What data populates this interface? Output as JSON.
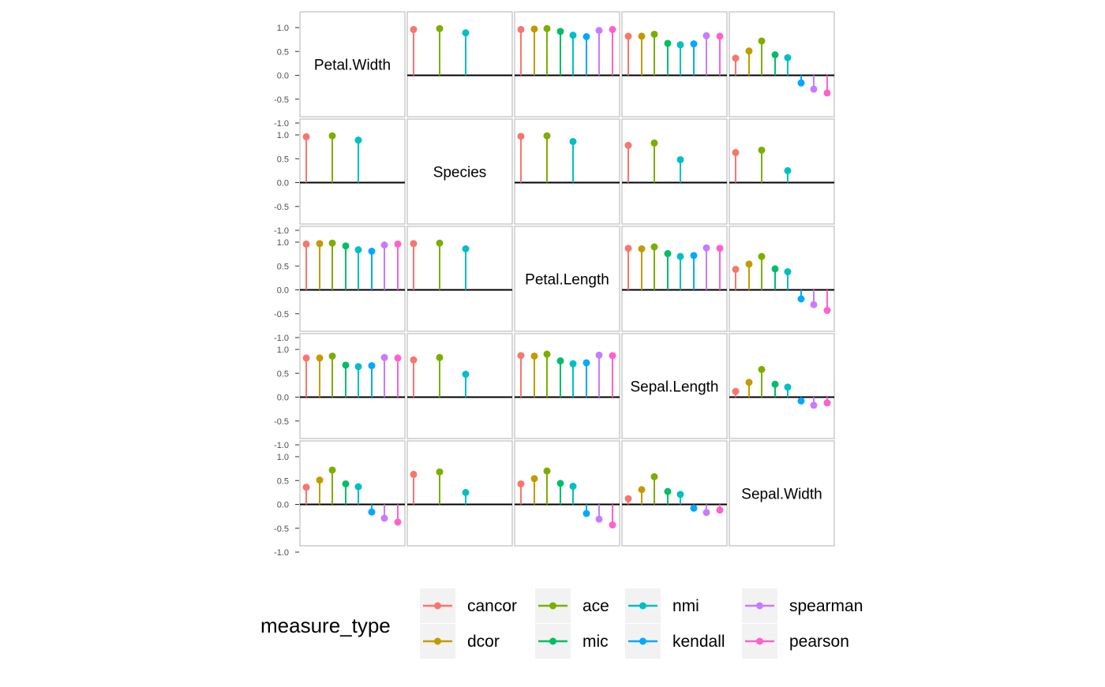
{
  "chart_data": {
    "type": "lollipop-matrix",
    "variables": [
      "Petal.Width",
      "Species",
      "Petal.Length",
      "Sepal.Length",
      "Sepal.Width"
    ],
    "ylim": [
      -1.0,
      1.0
    ],
    "yticks": [
      "1.0",
      "0.5",
      "0.0",
      "-0.5",
      "-1.0"
    ],
    "ytick_values": [
      1.0,
      0.5,
      0.0,
      -0.5,
      -1.0
    ],
    "grid": false,
    "legend": {
      "title": "measure_type",
      "placement": "bottom",
      "items": [
        {
          "name": "cancor",
          "color": "#F8766D"
        },
        {
          "name": "dcor",
          "color": "#C49A00"
        },
        {
          "name": "ace",
          "color": "#7CAE00"
        },
        {
          "name": "mic",
          "color": "#00BE67"
        },
        {
          "name": "nmi",
          "color": "#00BFC4"
        },
        {
          "name": "kendall",
          "color": "#00A9FF"
        },
        {
          "name": "spearman",
          "color": "#C77CFF"
        },
        {
          "name": "pearson",
          "color": "#FF61CC"
        }
      ]
    },
    "measures": [
      "cancor",
      "dcor",
      "ace",
      "mic",
      "nmi",
      "kendall",
      "spearman",
      "pearson"
    ],
    "num_num": {
      "Petal.Width|Petal.Length": [
        0.96,
        0.97,
        0.98,
        0.92,
        0.84,
        0.81,
        0.94,
        0.96
      ],
      "Petal.Width|Sepal.Length": [
        0.82,
        0.82,
        0.86,
        0.67,
        0.64,
        0.66,
        0.83,
        0.82
      ],
      "Petal.Width|Sepal.Width": [
        0.36,
        0.51,
        0.72,
        0.43,
        0.37,
        -0.16,
        -0.29,
        -0.37
      ],
      "Petal.Length|Sepal.Length": [
        0.87,
        0.86,
        0.9,
        0.76,
        0.7,
        0.72,
        0.88,
        0.87
      ],
      "Petal.Length|Sepal.Width": [
        0.43,
        0.54,
        0.7,
        0.44,
        0.38,
        -0.19,
        -0.31,
        -0.43
      ],
      "Sepal.Length|Sepal.Width": [
        0.12,
        0.31,
        0.58,
        0.27,
        0.21,
        -0.08,
        -0.17,
        -0.12
      ]
    },
    "num_factor": {
      "Species|Petal.Width": [
        0.96,
        0.98,
        0.89
      ],
      "Species|Petal.Length": [
        0.97,
        0.98,
        0.86
      ],
      "Species|Sepal.Length": [
        0.78,
        0.83,
        0.48
      ],
      "Species|Sepal.Width": [
        0.63,
        0.68,
        0.25
      ]
    }
  }
}
